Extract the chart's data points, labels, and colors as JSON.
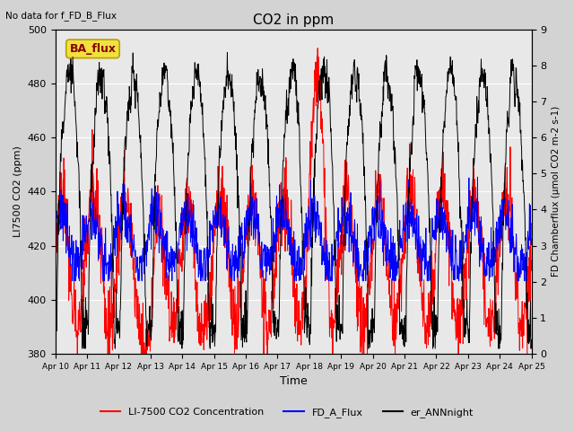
{
  "title": "CO2 in ppm",
  "top_left_text": "No data for f_FD_B_Flux",
  "xlabel": "Time",
  "ylabel_left": "LI7500 CO2 (ppm)",
  "ylabel_right": "FD Chamberflux (μmol CO2 m-2 s-1)",
  "ylim_left": [
    380,
    500
  ],
  "ylim_right": [
    0.0,
    9.0
  ],
  "yticks_left": [
    380,
    400,
    420,
    440,
    460,
    480,
    500
  ],
  "yticks_right": [
    0.0,
    1.0,
    2.0,
    3.0,
    4.0,
    5.0,
    6.0,
    7.0,
    8.0,
    9.0
  ],
  "xtick_labels": [
    "Apr 10",
    "Apr 11",
    "Apr 12",
    "Apr 13",
    "Apr 14",
    "Apr 15",
    "Apr 16",
    "Apr 17",
    "Apr 18",
    "Apr 19",
    "Apr 20",
    "Apr 21",
    "Apr 22",
    "Apr 23",
    "Apr 24",
    "Apr 25"
  ],
  "background_color": "#d3d3d3",
  "plot_bg_color": "#e8e8e8",
  "legend_entries": [
    "LI-7500 CO2 Concentration",
    "FD_A_Flux",
    "er_ANNnight"
  ],
  "legend_colors": [
    "red",
    "blue",
    "black"
  ],
  "ba_flux_box_facecolor": "#f0e040",
  "ba_flux_box_edgecolor": "#b8a000",
  "ba_flux_text_color": "#8b0000",
  "figsize": [
    6.4,
    4.8
  ],
  "dpi": 100
}
